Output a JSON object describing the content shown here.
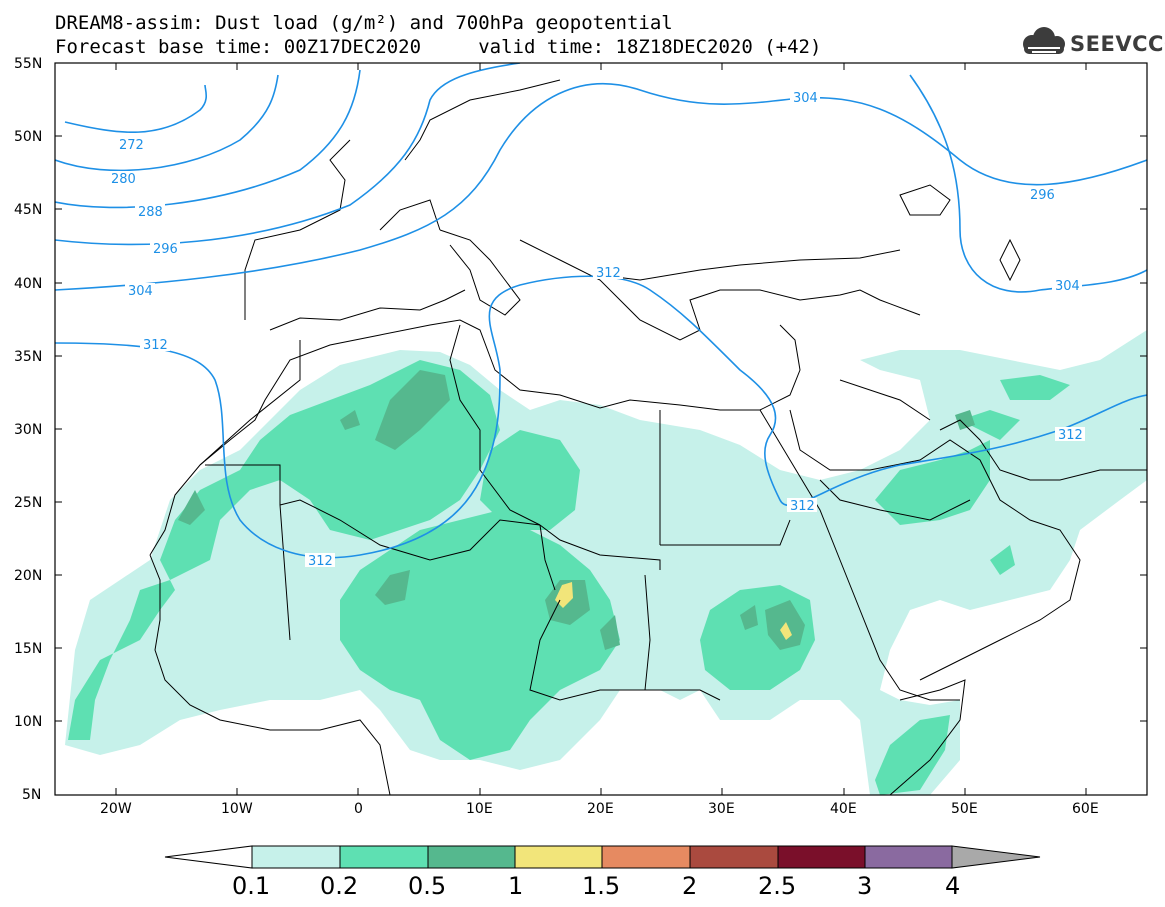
{
  "title": {
    "line1": "DREAM8-assim: Dust load (g/m²) and 700hPa geopotential",
    "line2": "Forecast base time: 00Z17DEC2020     valid time: 18Z18DEC2020 (+42)"
  },
  "logo": {
    "text": "SEEVCCC",
    "icon": "cloud-logo-icon"
  },
  "axes": {
    "lat_labels": [
      "55N",
      "50N",
      "45N",
      "40N",
      "35N",
      "30N",
      "25N",
      "20N",
      "15N",
      "10N",
      "5N"
    ],
    "lon_labels": [
      "20W",
      "10W",
      "0",
      "10E",
      "20E",
      "30E",
      "40E",
      "50E",
      "60E"
    ],
    "lon_range": [
      -25,
      65
    ],
    "lat_range": [
      5,
      55
    ]
  },
  "contours": {
    "label": "700hPa geopotential",
    "color": "#1e90e6",
    "levels": [
      "272",
      "280",
      "288",
      "296",
      "304",
      "312"
    ],
    "labels_shown": [
      "272",
      "280",
      "288",
      "296",
      "304",
      "312",
      "304",
      "296",
      "304",
      "312",
      "312",
      "312",
      "312"
    ]
  },
  "colorbar": {
    "levels": [
      "0.1",
      "0.2",
      "0.5",
      "1",
      "1.5",
      "2",
      "2.5",
      "3",
      "4"
    ],
    "colors": [
      "#ffffff",
      "#c6f1ea",
      "#5ee0b2",
      "#55b88e",
      "#f2e57a",
      "#e68a61",
      "#aa4a3f",
      "#7a0f2a",
      "#8a6aa0",
      "#a9a9a9"
    ]
  }
}
